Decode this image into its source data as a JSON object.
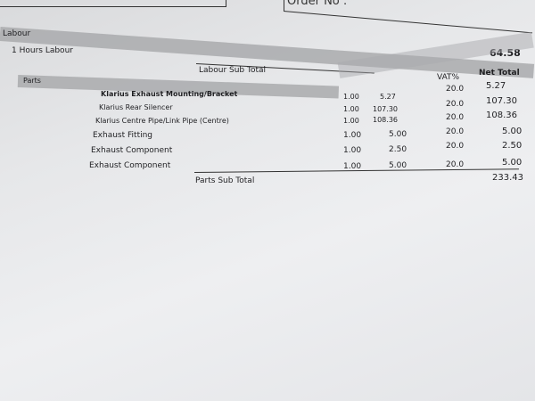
{
  "header": {
    "order_no_label": "Order No :"
  },
  "labour": {
    "section_label": "Labour",
    "item": "1 Hours Labour",
    "amount": "64.58",
    "subtotal_label": "Labour Sub Total"
  },
  "parts": {
    "section_label": "Parts",
    "columns": {
      "vat": "VAT%",
      "net_total": "Net Total"
    },
    "rows": [
      {
        "description": "Klarius Exhaust Mounting/Bracket",
        "qty": "1.00",
        "price": "5.27",
        "vat": "20.0",
        "net": "5.27"
      },
      {
        "description": "Klarius Rear Silencer",
        "qty": "1.00",
        "price": "107.30",
        "vat": "20.0",
        "net": "107.30"
      },
      {
        "description": "Klarius Centre Pipe/Link Pipe (Centre)",
        "qty": "1.00",
        "price": "108.36",
        "vat": "20.0",
        "net": "108.36"
      },
      {
        "description": "Exhaust Fitting",
        "qty": "1.00",
        "price": "5.00",
        "vat": "20.0",
        "net": "5.00"
      },
      {
        "description": "Exhaust Component",
        "qty": "1.00",
        "price": "2.50",
        "vat": "20.0",
        "net": "2.50"
      },
      {
        "description": "Exhaust Component",
        "qty": "1.00",
        "price": "5.00",
        "vat": "20.0",
        "net": "5.00"
      }
    ],
    "subtotal_label": "Parts Sub Total",
    "subtotal": "233.43"
  }
}
